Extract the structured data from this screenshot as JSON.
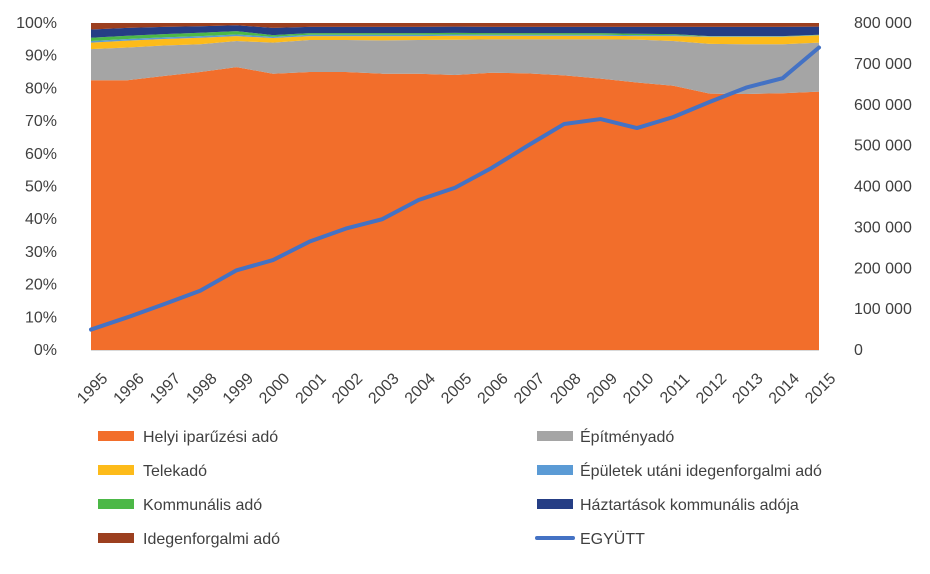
{
  "chart_data": {
    "type": "area",
    "stacked_percent": true,
    "categories": [
      "1995",
      "1996",
      "1997",
      "1998",
      "1999",
      "2000",
      "2001",
      "2002",
      "2003",
      "2004",
      "2005",
      "2006",
      "2007",
      "2008",
      "2009",
      "2010",
      "2011",
      "2012",
      "2013",
      "2014",
      "2015"
    ],
    "left_axis": {
      "ylim": [
        0,
        100
      ],
      "ticks": [
        "0%",
        "10%",
        "20%",
        "30%",
        "40%",
        "50%",
        "60%",
        "70%",
        "80%",
        "90%",
        "100%"
      ]
    },
    "right_axis": {
      "ylim": [
        0,
        800000
      ],
      "ticks": [
        "0",
        "100 000",
        "200 000",
        "300 000",
        "400 000",
        "500 000",
        "600 000",
        "700 000",
        "800 000"
      ]
    },
    "series": [
      {
        "name": "Helyi iparűzési adó",
        "color": "#F26E2B",
        "values": [
          82.5,
          82.5,
          83.8,
          85.0,
          86.5,
          84.5,
          85.0,
          85.0,
          84.5,
          84.5,
          84.0,
          84.8,
          84.6,
          84.0,
          83.0,
          81.8,
          80.8,
          78.4,
          78.3,
          78.5,
          79.0
        ]
      },
      {
        "name": "Építményadó",
        "color": "#A5A5A5",
        "values": [
          9.5,
          10.0,
          9.3,
          8.5,
          8.0,
          9.5,
          9.8,
          9.8,
          10.2,
          10.3,
          10.8,
          10.2,
          10.4,
          11.0,
          12.0,
          13.1,
          13.7,
          15.2,
          15.2,
          15.0,
          15.0
        ]
      },
      {
        "name": "Telekadó",
        "color": "#FDBB1A",
        "values": [
          2.0,
          2.1,
          2.0,
          2.0,
          1.5,
          1.4,
          1.2,
          1.2,
          1.3,
          1.2,
          1.2,
          1.1,
          1.1,
          1.1,
          1.1,
          1.1,
          1.5,
          2.2,
          2.3,
          2.3,
          2.2
        ]
      },
      {
        "name": "Épületek utáni idegenforgalmi adó",
        "color": "#5B9BD5",
        "values": [
          0.5,
          0.5,
          0.5,
          0.5,
          0.5,
          0.4,
          0.4,
          0.4,
          0.4,
          0.4,
          0.4,
          0.3,
          0.3,
          0.3,
          0.3,
          0.3,
          0.3,
          0.1,
          0.1,
          0.1,
          0.1
        ]
      },
      {
        "name": "Kommunális adó",
        "color": "#4CB847",
        "values": [
          1.0,
          1.0,
          1.0,
          1.0,
          1.0,
          0.5,
          0.5,
          0.5,
          0.5,
          0.5,
          0.5,
          0.5,
          0.5,
          0.5,
          0.5,
          0.4,
          0.3,
          0.1,
          0.1,
          0.1,
          0.1
        ]
      },
      {
        "name": "Háztartások kommunális adója",
        "color": "#253E85",
        "values": [
          2.5,
          2.4,
          2.2,
          2.0,
          1.8,
          2.2,
          1.9,
          1.9,
          1.9,
          1.9,
          1.9,
          1.9,
          1.9,
          1.9,
          1.9,
          2.1,
          2.2,
          2.8,
          2.8,
          2.8,
          2.5
        ]
      },
      {
        "name": "Idegenforgalmi adó",
        "color": "#9C3F1F",
        "values": [
          2.0,
          1.5,
          1.2,
          1.0,
          0.7,
          1.5,
          1.2,
          1.2,
          1.2,
          1.2,
          1.1,
          1.2,
          1.2,
          1.2,
          1.2,
          1.2,
          1.2,
          1.2,
          1.2,
          1.2,
          1.1
        ]
      }
    ],
    "line_series": {
      "name": "EGYÜTT",
      "color": "#4472C4",
      "axis": "right",
      "values": [
        50000,
        80000,
        112000,
        145000,
        195000,
        220000,
        265000,
        297000,
        320000,
        367000,
        397000,
        445000,
        500000,
        553000,
        565000,
        543000,
        570000,
        607000,
        642000,
        665000,
        740000
      ]
    },
    "legend": {
      "position": "bottom",
      "order": [
        "Helyi iparűzési adó",
        "Építményadó",
        "Telekadó",
        "Épületek utáni idegenforgalmi adó",
        "Kommunális adó",
        "Háztartások kommunális adója",
        "Idegenforgalmi adó",
        "EGYÜTT"
      ]
    },
    "title": "",
    "xlabel": "",
    "ylabel": "",
    "grid": false
  }
}
